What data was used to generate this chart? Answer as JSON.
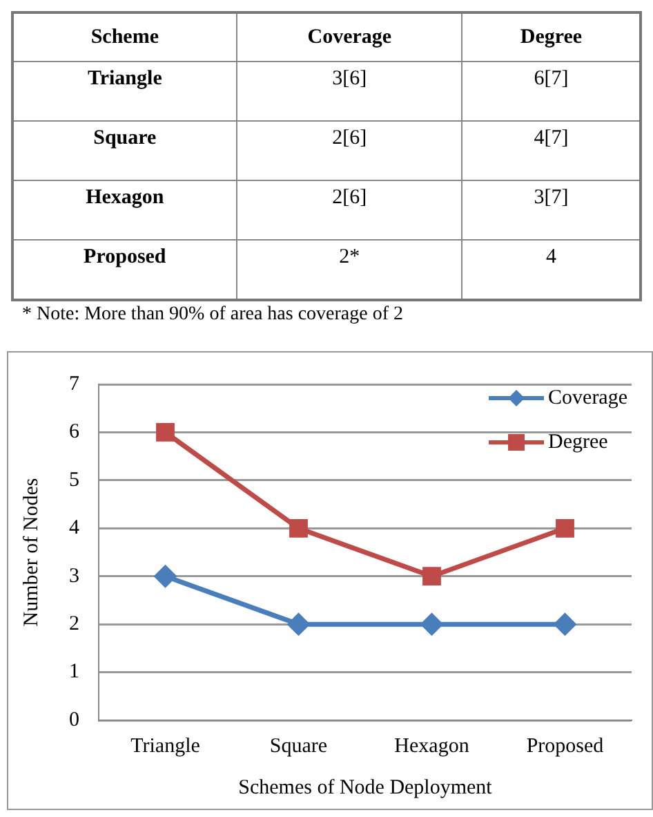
{
  "chart_data": [
    {
      "type": "other",
      "categories": [
        "Scheme",
        "Coverage",
        "Degree"
      ],
      "y_categories": [
        "Triangle",
        "Square",
        "Hexagon",
        "Proposed"
      ],
      "cell_labels": [
        [
          "3[6]",
          "6[7]"
        ],
        [
          "2[6]",
          "4[7]"
        ],
        [
          "2[6]",
          "3[7]"
        ],
        [
          "2*",
          "4"
        ]
      ],
      "annotations": [
        "* Note: More than 90% of area has coverage of 2"
      ]
    },
    {
      "type": "line",
      "xlabel": "Schemes of Node Deployment",
      "ylabel": "Number of Nodes",
      "categories": [
        "Triangle",
        "Square",
        "Hexagon",
        "Proposed"
      ],
      "series": [
        {
          "name": "Coverage",
          "color": "#4a7ebb",
          "marker": "diamond",
          "values": [
            3,
            2,
            2,
            2
          ]
        },
        {
          "name": "Degree",
          "color": "#be4b48",
          "marker": "square",
          "values": [
            6,
            4,
            3,
            4
          ]
        }
      ],
      "ylim": [
        0,
        7
      ],
      "yticks": [
        0,
        1,
        2,
        3,
        4,
        5,
        6,
        7
      ],
      "grid": "y",
      "legend": "top right",
      "line_style": "solid"
    }
  ]
}
